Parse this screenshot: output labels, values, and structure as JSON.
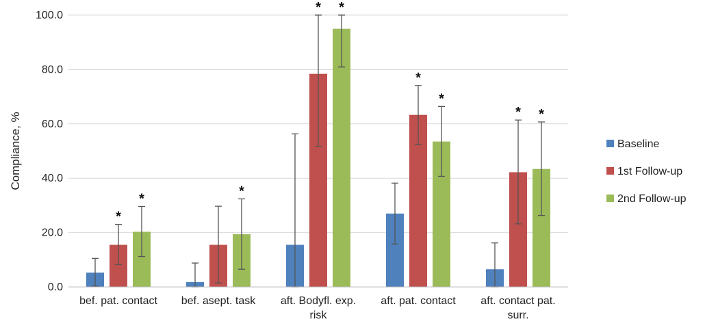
{
  "chart_data": {
    "type": "bar",
    "ylabel": "Compliance, %",
    "xlabel": "",
    "ylim": [
      0,
      100
    ],
    "yticks": [
      "0.0",
      "20.0",
      "40.0",
      "60.0",
      "80.0",
      "100.0"
    ],
    "grid": true,
    "legend_position": "right",
    "categories": [
      [
        "bef. pat. contact"
      ],
      [
        "bef. asept. task"
      ],
      [
        "aft. Bodyfl. exp.",
        "risk"
      ],
      [
        "aft. pat. contact"
      ],
      [
        "aft. contact pat.",
        "surr."
      ]
    ],
    "series": [
      {
        "name": "Baseline",
        "color": "#4F81BD",
        "values": [
          5.3,
          1.8,
          15.5,
          27.0,
          6.5
        ],
        "err_low": [
          0.3,
          0.0,
          0.0,
          15.8,
          0.0
        ],
        "err_high": [
          10.5,
          8.8,
          56.3,
          38.2,
          16.2
        ],
        "significant": [
          false,
          false,
          false,
          false,
          false
        ]
      },
      {
        "name": "1st Follow-up",
        "color": "#C0504D",
        "values": [
          15.5,
          15.5,
          78.4,
          63.3,
          42.2
        ],
        "err_low": [
          8.2,
          1.5,
          51.7,
          52.4,
          23.2
        ],
        "err_high": [
          23.0,
          29.7,
          100.0,
          74.1,
          61.4
        ],
        "significant": [
          true,
          false,
          true,
          true,
          true
        ]
      },
      {
        "name": "2nd Follow-up",
        "color": "#9BBB59",
        "values": [
          20.3,
          19.4,
          95.0,
          53.5,
          43.4
        ],
        "err_low": [
          11.2,
          6.5,
          80.9,
          40.7,
          26.3
        ],
        "err_high": [
          29.6,
          32.4,
          100.0,
          66.4,
          60.7
        ],
        "significant": [
          true,
          true,
          true,
          true,
          true
        ]
      }
    ],
    "significance_marker": "*"
  }
}
